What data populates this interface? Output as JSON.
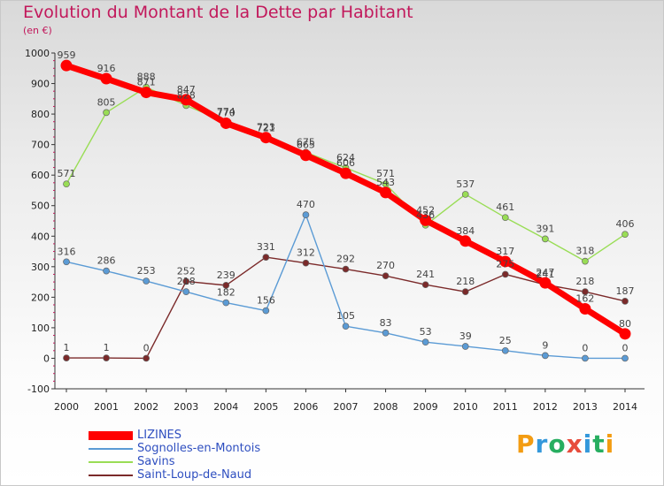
{
  "header": {
    "title": "Evolution du Montant de la Dette par Habitant",
    "subtitle": "(en €)"
  },
  "logo": {
    "text": "Proxiti",
    "colors": [
      "#f39c12",
      "#3498db",
      "#27ae60",
      "#e74c3c",
      "#3498db",
      "#27ae60",
      "#f39c12"
    ]
  },
  "chart_data": {
    "type": "line",
    "x": [
      "2000",
      "2001",
      "2002",
      "2003",
      "2004",
      "2005",
      "2006",
      "2007",
      "2008",
      "2009",
      "2010",
      "2011",
      "2012",
      "2013",
      "2014"
    ],
    "ylim": [
      -100,
      1000
    ],
    "yticks": [
      "-100",
      "0",
      "100",
      "200",
      "300",
      "400",
      "500",
      "600",
      "700",
      "800",
      "900",
      "1000"
    ],
    "grid": false,
    "legend_position": "bottom-left",
    "series": [
      {
        "name": "LIZINES",
        "color": "#ff0000",
        "values": [
          959,
          916,
          871,
          847,
          770,
          723,
          665,
          606,
          543,
          452,
          384,
          317,
          247,
          162,
          80
        ],
        "labels": [
          "959",
          "916",
          "871",
          "847",
          "770",
          "723",
          "665",
          "606",
          "543",
          "452",
          "384",
          "317",
          "247",
          "162",
          "80"
        ]
      },
      {
        "name": "Sognolles-en-Montois",
        "color": "#5b9bd5",
        "values": [
          316,
          286,
          253,
          218,
          182,
          156,
          470,
          105,
          83,
          53,
          39,
          25,
          9,
          0,
          0
        ],
        "labels": [
          "316",
          "286",
          "253",
          "218",
          "182",
          "156",
          "470",
          "105",
          "83",
          "53",
          "39",
          "25",
          "9",
          "0",
          "0"
        ]
      },
      {
        "name": "Savins",
        "color": "#99dd55",
        "values": [
          571,
          805,
          888,
          828,
          774,
          721,
          675,
          624,
          571,
          436,
          537,
          461,
          391,
          318,
          406
        ],
        "labels": [
          "571",
          "805",
          "888",
          "828",
          "774",
          "721",
          "675",
          "624",
          "571",
          "436",
          "537",
          "461",
          "391",
          "318",
          "406"
        ]
      },
      {
        "name": "Saint-Loup-de-Naud",
        "color": "#7b2a2a",
        "values": [
          1,
          1,
          0,
          252,
          239,
          331,
          312,
          292,
          270,
          241,
          218,
          275,
          241,
          218,
          187
        ],
        "labels": [
          "1",
          "1",
          "0",
          "252",
          "239",
          "331",
          "312",
          "292",
          "270",
          "241",
          "218",
          "275",
          "241",
          "218",
          "187"
        ]
      }
    ]
  }
}
